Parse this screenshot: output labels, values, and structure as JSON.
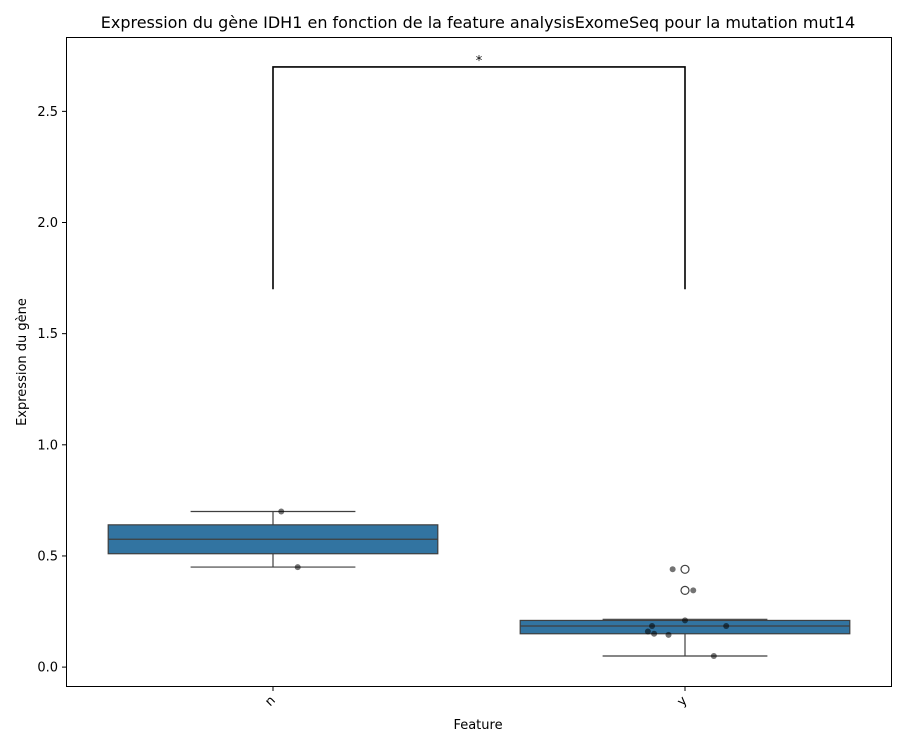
{
  "chart_data": {
    "type": "box",
    "title": "Expression du gène IDH1 en fonction de la feature analysisExomeSeq pour la mutation mut14",
    "xlabel": "Feature",
    "ylabel": "Expression du gène",
    "categories": [
      "n",
      "y"
    ],
    "ylim": [
      -0.085,
      2.83
    ],
    "yticks": [
      0.0,
      0.5,
      1.0,
      1.5,
      2.0,
      2.5
    ],
    "ytick_labels": [
      "0.0",
      "0.5",
      "1.0",
      "1.5",
      "2.0",
      "2.5"
    ],
    "box_color": "#3274a1",
    "boxes": [
      {
        "category": "n",
        "min": 0.45,
        "q1": 0.51,
        "median": 0.575,
        "q3": 0.64,
        "max": 0.7,
        "outliers": []
      },
      {
        "category": "y",
        "min": 0.05,
        "q1": 0.15,
        "median": 0.185,
        "q3": 0.21,
        "max": 0.215,
        "outliers": [
          0.44,
          0.345
        ]
      }
    ],
    "points": [
      {
        "category": "n",
        "jitter": 0.02,
        "value": 0.7
      },
      {
        "category": "n",
        "jitter": 0.06,
        "value": 0.45
      },
      {
        "category": "y",
        "jitter": -0.03,
        "value": 0.44
      },
      {
        "category": "y",
        "jitter": 0.02,
        "value": 0.345
      },
      {
        "category": "y",
        "jitter": 0.0,
        "value": 0.21
      },
      {
        "category": "y",
        "jitter": -0.08,
        "value": 0.185
      },
      {
        "category": "y",
        "jitter": 0.1,
        "value": 0.185
      },
      {
        "category": "y",
        "jitter": -0.09,
        "value": 0.16
      },
      {
        "category": "y",
        "jitter": -0.075,
        "value": 0.15
      },
      {
        "category": "y",
        "jitter": -0.04,
        "value": 0.145
      },
      {
        "category": "y",
        "jitter": 0.07,
        "value": 0.05
      }
    ],
    "significance": {
      "from": "n",
      "to": "y",
      "y_top": 2.7,
      "y_bottom": 1.7,
      "label": "*"
    }
  }
}
